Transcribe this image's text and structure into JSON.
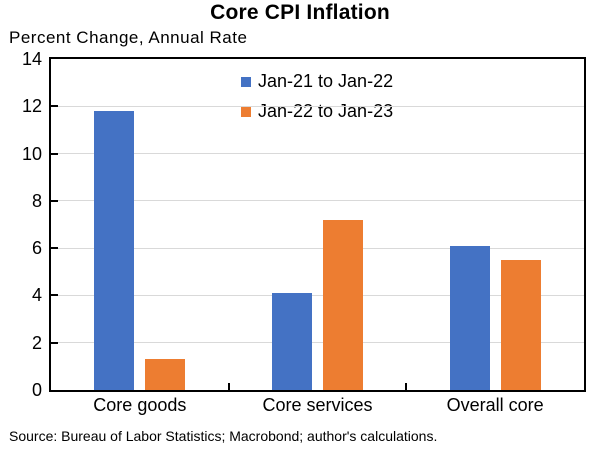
{
  "chart_data": {
    "type": "bar",
    "title": "Core CPI Inflation",
    "subtitle": "Percent Change, Annual Rate",
    "xlabel": "",
    "ylabel": "",
    "categories": [
      "Core goods",
      "Core services",
      "Overall core"
    ],
    "series": [
      {
        "name": "Jan-21 to Jan-22",
        "color": "#4472C4",
        "values": [
          11.8,
          4.1,
          6.1
        ]
      },
      {
        "name": "Jan-22 to Jan-23",
        "color": "#ED7D31",
        "values": [
          1.3,
          7.2,
          5.5
        ]
      }
    ],
    "ylim": [
      0,
      14
    ],
    "yticks": [
      0,
      2,
      4,
      6,
      8,
      10,
      12,
      14
    ],
    "grid": "horizontal",
    "gridline_color": "#D9D9D9",
    "axis_color": "#000000",
    "legend_position": "top-center-inside"
  },
  "source": "Source: Bureau of Labor Statistics; Macrobond; author's calculations."
}
